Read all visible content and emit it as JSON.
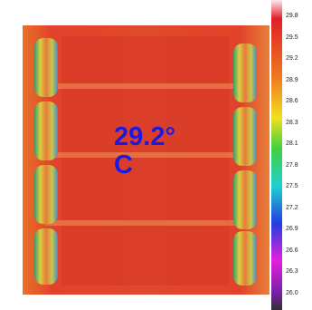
{
  "spot_temperature": "29.2°C",
  "scale_labels": [
    "29.8",
    "29.5",
    "29.2",
    "28.9",
    "28.6",
    "28.3",
    "28.1",
    "27.8",
    "27.5",
    "27.2",
    "26.9",
    "26.6",
    "26.3",
    "26.0"
  ]
}
